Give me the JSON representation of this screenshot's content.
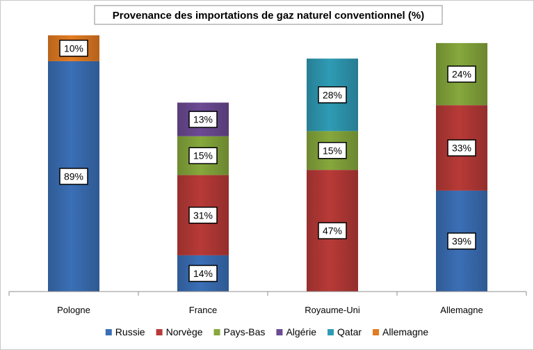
{
  "chart_data": {
    "type": "bar",
    "stacked": true,
    "title": "Provenance des importations de gaz naturel conventionnel (%)",
    "categories": [
      "Pologne",
      "France",
      "Royaume-Uni",
      "Allemagne"
    ],
    "series": [
      {
        "name": "Russie",
        "color": "#3b6fb6",
        "values": [
          89,
          14,
          null,
          39
        ],
        "labels": [
          "89%",
          "14%",
          "",
          "39%"
        ]
      },
      {
        "name": "Norvège",
        "color": "#b83a37",
        "values": [
          null,
          31,
          47,
          33
        ],
        "labels": [
          "",
          "31%",
          "47%",
          "33%"
        ]
      },
      {
        "name": "Pays-Bas",
        "color": "#86a83c",
        "values": [
          null,
          15,
          15,
          24
        ],
        "labels": [
          "",
          "15%",
          "15%",
          "24%"
        ]
      },
      {
        "name": "Algérie",
        "color": "#6c4a94",
        "values": [
          null,
          13,
          null,
          null
        ],
        "labels": [
          "",
          "13%",
          "",
          ""
        ]
      },
      {
        "name": "Qatar",
        "color": "#2f9bb5",
        "values": [
          null,
          null,
          28,
          null
        ],
        "labels": [
          "",
          "",
          "28%",
          ""
        ]
      },
      {
        "name": "Allemagne",
        "color": "#e27b22",
        "values": [
          10,
          null,
          null,
          null
        ],
        "labels": [
          "10%",
          "",
          "",
          ""
        ]
      }
    ],
    "ylim": [
      0,
      100
    ],
    "grid": false,
    "legend_position": "bottom"
  }
}
